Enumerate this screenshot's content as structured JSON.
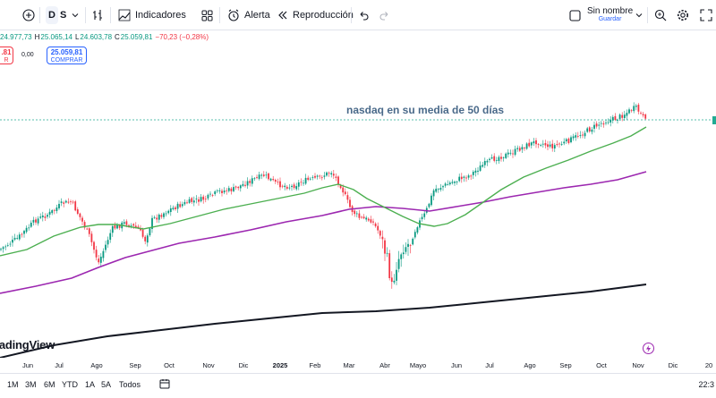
{
  "toolbar": {
    "interval_d": "D",
    "interval_s": "S",
    "indicators": "Indicadores",
    "alert": "Alerta",
    "replay": "Reproducción",
    "layout_name": "Sin nombre",
    "save_label": "Guardar"
  },
  "ohlc": {
    "o": "24.977,73",
    "h_label": "H",
    "h": "25.065,14",
    "l_label": "L",
    "l": "24.603,78",
    "c_label": "C",
    "c": "25.059,81",
    "change": "−70,23 (−0,28%)"
  },
  "trade": {
    "sell_price": ".81",
    "sell_label": "R",
    "spread": "0,00",
    "buy_price": "25.059,81",
    "buy_label": "COMPRAR"
  },
  "annotation": "nasdaq en su media de 50 días",
  "watermark": "radingView",
  "time_axis": [
    "Jun",
    "Jul",
    "Ago",
    "Sep",
    "Oct",
    "Nov",
    "Dic",
    "2025",
    "Feb",
    "Mar",
    "Abr",
    "Mayo",
    "Jun",
    "Jul",
    "Ago",
    "Sep",
    "Oct",
    "Nov",
    "Dic",
    "20"
  ],
  "ranges": [
    "1M",
    "3M",
    "6M",
    "YTD",
    "1A",
    "5A",
    "Todos"
  ],
  "clock": "22:3",
  "colors": {
    "up": "#089981",
    "down": "#f23645",
    "ma50": "#4caf50",
    "ma200": "#9c27b0",
    "ma_long": "#131722"
  }
}
